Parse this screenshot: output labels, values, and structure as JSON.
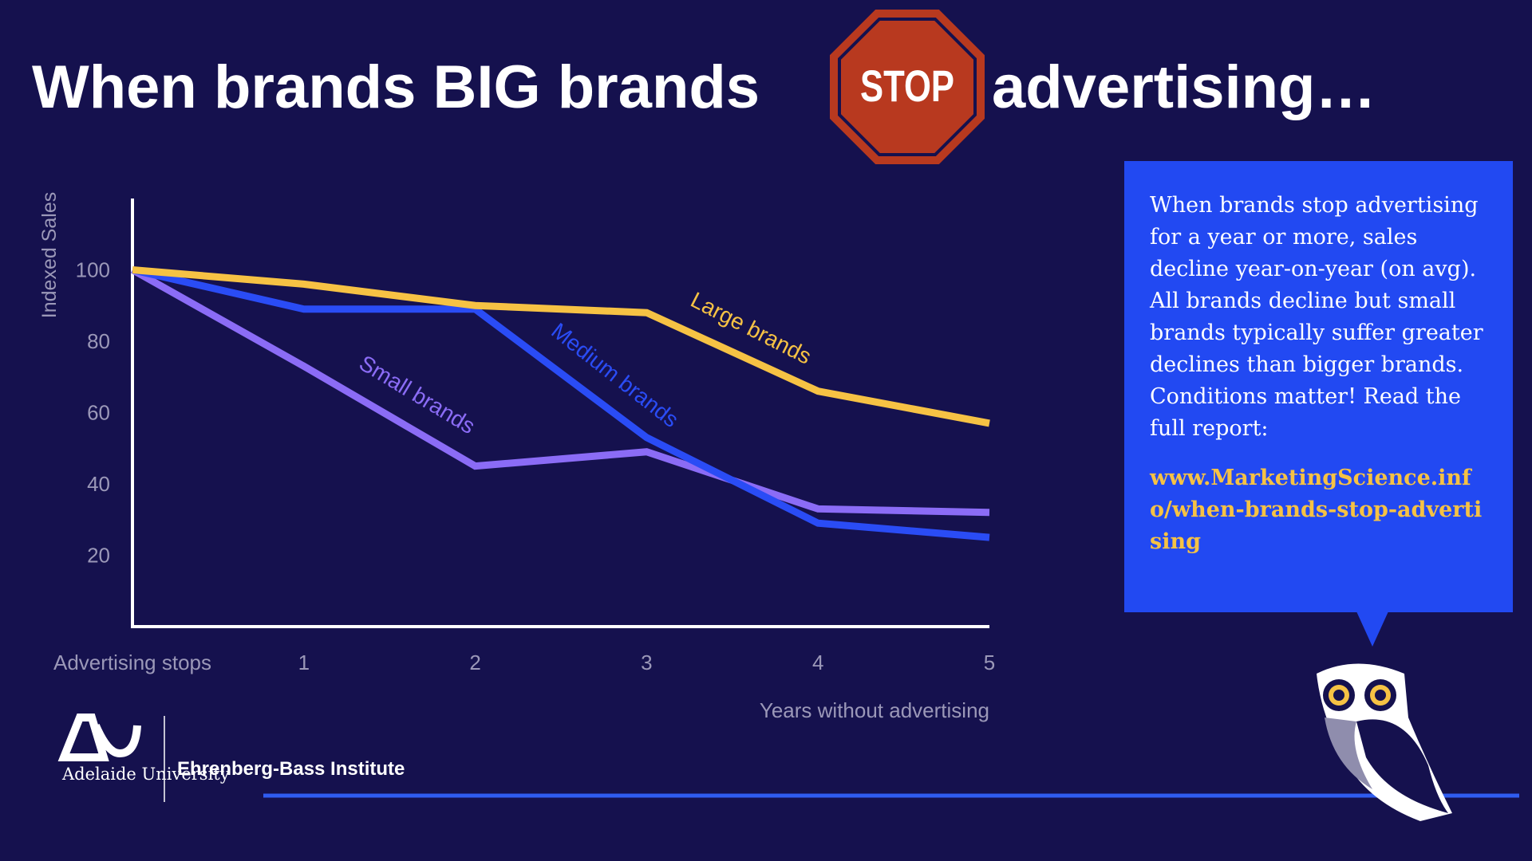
{
  "header": {
    "before": "When brands BIG brands",
    "sign": "STOP",
    "after": "advertising…"
  },
  "chart_data": {
    "type": "line",
    "y_label": "Indexed Sales",
    "x_label": "Years without advertising",
    "categories": [
      "Advertising stops",
      "1",
      "2",
      "3",
      "4",
      "5"
    ],
    "series": [
      {
        "name": "Large brands",
        "color": "#f6c244",
        "values": [
          100,
          96,
          90,
          88,
          66,
          57
        ]
      },
      {
        "name": "Medium brands",
        "color": "#2a4cf5",
        "values": [
          100,
          89,
          89,
          53,
          29,
          25
        ]
      },
      {
        "name": "Small brands",
        "color": "#8b6cf6",
        "values": [
          100,
          73,
          45,
          49,
          33,
          32
        ]
      }
    ],
    "ylim": [
      0,
      120
    ],
    "yticks": [
      20,
      40,
      60,
      80,
      100
    ],
    "grid": false
  },
  "callout": {
    "text": "When brands stop advertising for a year or more, sales decline year-on-year (on avg). All brands decline but small brands typically suffer greater declines than bigger brands. Conditions matter! Read the full report:",
    "link": "www.MarketingScience.info/when-brands-stop-advertising"
  },
  "logos": {
    "university": "Adelaide University",
    "institute": "Ehrenberg-Bass Institute"
  }
}
